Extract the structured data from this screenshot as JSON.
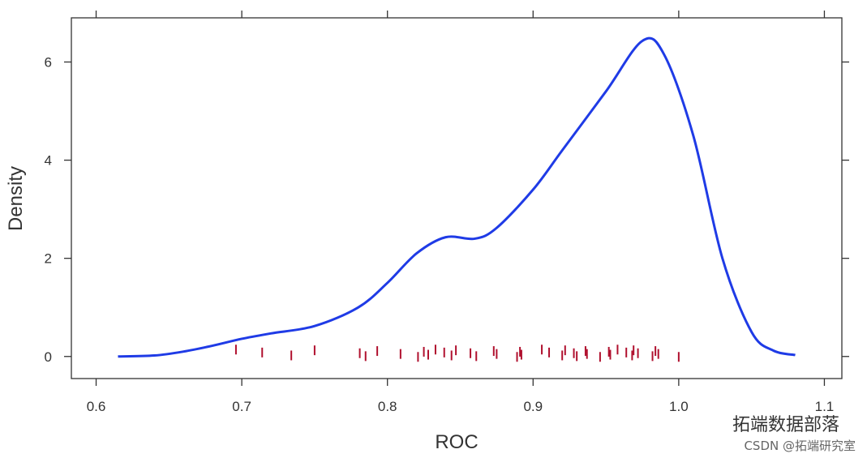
{
  "chart_data": {
    "type": "line",
    "title": "",
    "xlabel": "ROC",
    "ylabel": "Density",
    "xlim": [
      0.583,
      1.112
    ],
    "ylim": [
      -0.45,
      6.9
    ],
    "xticks": [
      0.6,
      0.7,
      0.8,
      0.9,
      1.0,
      1.1
    ],
    "xtick_labels": [
      "0.6",
      "0.7",
      "0.8",
      "0.9",
      "1.0",
      "1.1"
    ],
    "yticks": [
      0,
      2,
      4,
      6
    ],
    "ytick_labels": [
      "0",
      "2",
      "4",
      "6"
    ],
    "grid": false,
    "colors": {
      "density": "#1f3be6",
      "rug": "#b0102e",
      "axis": "#333333"
    },
    "series": [
      {
        "name": "density",
        "x": [
          0.615,
          0.64,
          0.66,
          0.68,
          0.7,
          0.72,
          0.75,
          0.78,
          0.8,
          0.82,
          0.84,
          0.86,
          0.875,
          0.9,
          0.92,
          0.95,
          0.975,
          0.99,
          1.01,
          1.03,
          1.05,
          1.065,
          1.08
        ],
        "y": [
          0.0,
          0.02,
          0.1,
          0.22,
          0.36,
          0.47,
          0.62,
          1.0,
          1.5,
          2.1,
          2.43,
          2.4,
          2.62,
          3.4,
          4.2,
          5.4,
          6.43,
          6.15,
          4.5,
          2.0,
          0.5,
          0.12,
          0.03
        ]
      }
    ],
    "rug": [
      0.696,
      0.714,
      0.734,
      0.75,
      0.781,
      0.785,
      0.793,
      0.809,
      0.821,
      0.825,
      0.828,
      0.833,
      0.839,
      0.844,
      0.847,
      0.857,
      0.861,
      0.873,
      0.875,
      0.889,
      0.891,
      0.892,
      0.906,
      0.911,
      0.92,
      0.922,
      0.928,
      0.93,
      0.936,
      0.937,
      0.946,
      0.952,
      0.953,
      0.958,
      0.964,
      0.968,
      0.969,
      0.972,
      0.982,
      0.984,
      0.986,
      1.0
    ]
  },
  "watermark": {
    "line1": "拓端数据部落",
    "line2": "CSDN @拓端研究室"
  }
}
